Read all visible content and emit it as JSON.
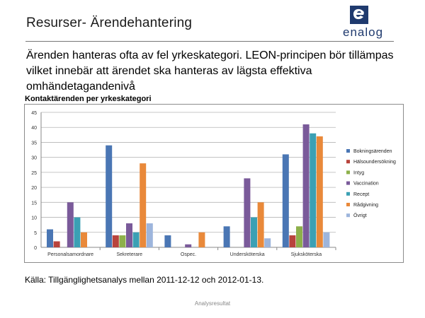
{
  "slide": {
    "title": "Resurser- Ärendehantering",
    "logo_text": "enalog",
    "intro": "Ärenden hanteras ofta av fel yrkeskategori. LEON-principen bör tillämpas vilket innebär att ärendet ska hanteras av lägsta effektiva omhändetagandenivå",
    "source": "Källa: Tillgänglighetsanalys mellan 2011-12-12 och 2012-01-13.",
    "footer": "Analysresultat"
  },
  "chart_data": {
    "type": "bar",
    "title": "Kontaktärenden per yrkeskategori",
    "categories": [
      "Personalsamordnare",
      "Sekreterare",
      "Ospec.",
      "Undersköterska",
      "Sjuksköterska"
    ],
    "ylim": [
      0,
      45
    ],
    "yticks": [
      0,
      5,
      10,
      15,
      20,
      25,
      30,
      35,
      40,
      45
    ],
    "grid": true,
    "legend_position": "right",
    "series": [
      {
        "name": "Bokningsärenden",
        "color": "#4a76b4",
        "values": [
          6,
          34,
          4,
          7,
          31
        ]
      },
      {
        "name": "Hälsoundersökning",
        "color": "#b8433c",
        "values": [
          2,
          4,
          0,
          0,
          4
        ]
      },
      {
        "name": "Intyg",
        "color": "#8db04a",
        "values": [
          0,
          4,
          0,
          0,
          7
        ]
      },
      {
        "name": "Vaccination",
        "color": "#7a5a9a",
        "values": [
          15,
          8,
          1,
          23,
          41
        ]
      },
      {
        "name": "Recept",
        "color": "#3ba0b4",
        "values": [
          10,
          5,
          0,
          10,
          38
        ]
      },
      {
        "name": "Rådgivning",
        "color": "#e9893a",
        "values": [
          5,
          28,
          5,
          15,
          37
        ]
      },
      {
        "name": "Övrigt",
        "color": "#9db5dc",
        "values": [
          0,
          8,
          0,
          3,
          5
        ]
      }
    ]
  }
}
